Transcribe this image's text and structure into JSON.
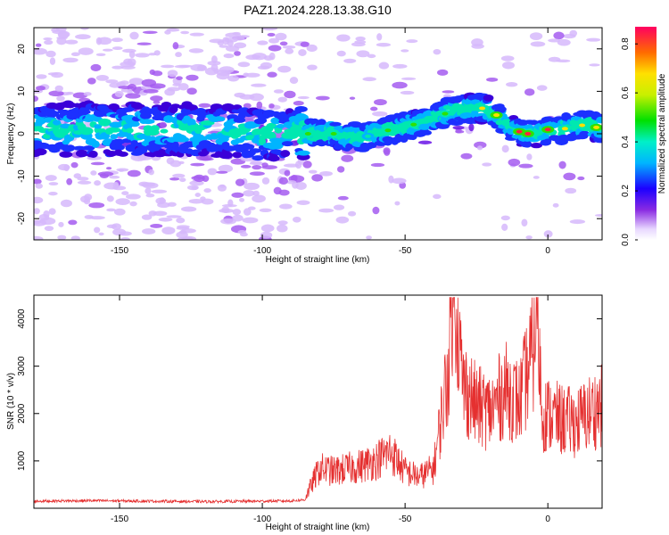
{
  "title": "PAZ1.2024.228.13.38.G10",
  "colors": {
    "snr_line": "#e53030",
    "frame": "#000000",
    "spectrum_low": "#e6d8f7",
    "spectrum_mid": "#7a1fe0",
    "spectrum_core": "#2a00c8"
  },
  "chart_data": [
    {
      "type": "heatmap",
      "xlabel": "Height of straight line (km)",
      "ylabel": "Frequency (Hz)",
      "xlim": [
        -180,
        19
      ],
      "ylim": [
        -25,
        25
      ],
      "xticks": [
        -150,
        -100,
        -50,
        0
      ],
      "yticks": [
        -20,
        -10,
        0,
        10,
        20
      ],
      "ridge": {
        "x": [
          -180,
          -150,
          -120,
          -100,
          -85,
          -75,
          -65,
          -55,
          -48,
          -42,
          -35,
          -28,
          -22,
          -17,
          -12,
          -8,
          -3,
          0,
          5,
          10,
          15,
          19
        ],
        "freq": [
          1,
          1,
          1,
          0,
          0,
          0,
          -1,
          1,
          2,
          3,
          5,
          6,
          6,
          4,
          1,
          0,
          0,
          1,
          1,
          2,
          2,
          1
        ]
      },
      "colorbar": {
        "label": "Normalized spectral amplitude",
        "range": [
          0,
          0.87
        ],
        "ticks": [
          0.0,
          0.2,
          0.4,
          0.6,
          0.8
        ],
        "tick_labels": [
          "0.0",
          "0.2",
          "0.4",
          "0.6",
          "0.8"
        ],
        "colormap": "rainbow"
      },
      "grid": false
    },
    {
      "type": "line",
      "xlabel": "Height of straight line (km)",
      "ylabel": "SNR (10 * v/v)",
      "xlim": [
        -180,
        19
      ],
      "ylim": [
        0,
        4500
      ],
      "xticks": [
        -150,
        -100,
        -50,
        0
      ],
      "yticks": [
        1000,
        2000,
        3000,
        4000
      ],
      "series": [
        {
          "x": [
            -180,
            -160,
            -140,
            -120,
            -100,
            -90,
            -85,
            -80,
            -75,
            -70,
            -65,
            -60,
            -55,
            -50,
            -45,
            -40,
            -35,
            -33,
            -30,
            -25,
            -20,
            -15,
            -10,
            -5,
            -4,
            -2,
            0,
            5,
            10,
            15,
            19
          ],
          "values": [
            150,
            160,
            150,
            140,
            150,
            155,
            180,
            700,
            650,
            700,
            750,
            850,
            1000,
            650,
            550,
            700,
            2400,
            4400,
            2200,
            1800,
            1700,
            2100,
            1850,
            2800,
            3900,
            1650,
            1650,
            1550,
            1500,
            1700,
            1800
          ]
        }
      ],
      "grid": false
    }
  ]
}
